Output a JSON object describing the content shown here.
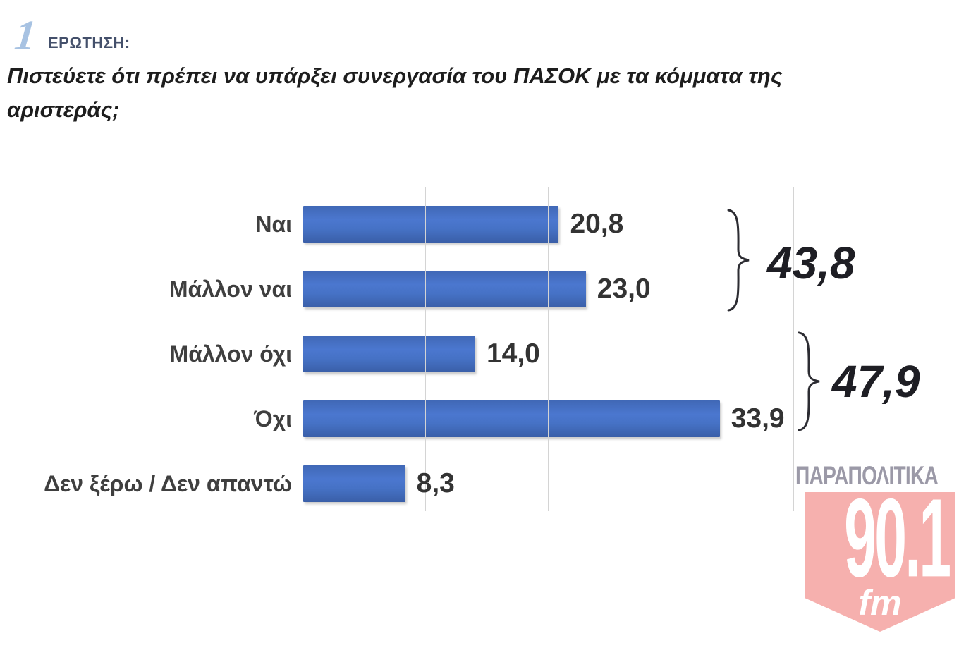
{
  "header": {
    "number": "1",
    "kicker": "ΕΡΩΤΗΣΗ:",
    "question_lines": [
      "Πιστεύετε ότι πρέπει να υπάρξει συνεργασία του ΠΑΣΟΚ με τα κόμματα της",
      "αριστεράς;"
    ]
  },
  "chart_data": {
    "type": "bar",
    "orientation": "horizontal",
    "title": "Πιστεύετε ότι πρέπει να υπάρξει συνεργασία του ΠΑΣΟΚ με τα κόμματα της αριστεράς;",
    "categories": [
      "Ναι",
      "Μάλλον ναι",
      "Μάλλον όχι",
      "Όχι",
      "Δεν ξέρω / Δεν απαντώ"
    ],
    "values": [
      20.8,
      23.0,
      14.0,
      33.9,
      8.3
    ],
    "value_labels": [
      "20,8",
      "23,0",
      "14,0",
      "33,9",
      "8,3"
    ],
    "xlim": [
      0,
      40
    ],
    "gridlines": [
      0,
      10,
      20,
      30,
      40
    ],
    "grid": "vertical-only",
    "bar_color": "#4472c4",
    "legend": "none",
    "groups": [
      {
        "label": "43,8",
        "value": 43.8,
        "members": [
          "Ναι",
          "Μάλλον ναι"
        ]
      },
      {
        "label": "47,9",
        "value": 47.9,
        "members": [
          "Μάλλον όχι",
          "Όχι"
        ]
      }
    ]
  },
  "logo": {
    "brand": "ΠΑΡΑΠΟΛΙΤΙΚΑ",
    "frequency": "90.1",
    "band": "fm",
    "shield_color": "#f6b0ae",
    "brand_color": "#9b99a7"
  },
  "colors": {
    "bar_blue": "#4472c4",
    "grid_gray": "#d4d4d4",
    "text_dark": "#1d1d1d",
    "icon_blue": "#a7c2e2"
  }
}
